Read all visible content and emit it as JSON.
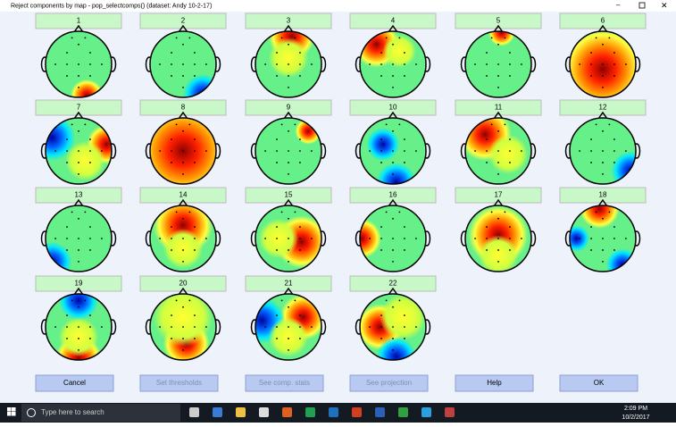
{
  "window": {
    "title": "Reject components by map - pop_selectcomps() (dataset: Andy 10-2-17)"
  },
  "components": [
    "1",
    "2",
    "3",
    "4",
    "5",
    "6",
    "7",
    "8",
    "9",
    "10",
    "11",
    "12",
    "13",
    "14",
    "15",
    "16",
    "17",
    "18",
    "19",
    "20",
    "21",
    "22"
  ],
  "buttons": [
    "Cancel",
    "Set thresholds",
    "See comp. stats",
    "See projection",
    "Help",
    "OK"
  ],
  "taskbar": {
    "search": "Type here to search",
    "time": "2:09 PM",
    "date": "10/2/2017"
  }
}
